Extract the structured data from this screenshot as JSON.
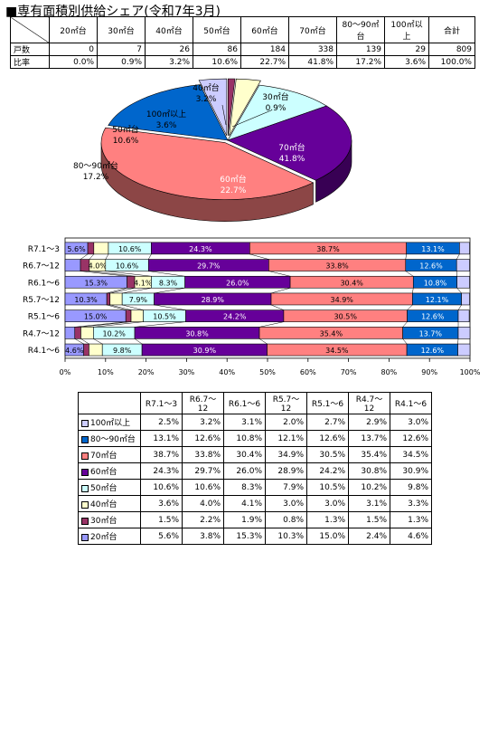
{
  "title": "■専有面積別供給シェア(令和7年3月)",
  "units_table": {
    "columns": [
      "20㎡台",
      "30㎡台",
      "40㎡台",
      "50㎡台",
      "60㎡台",
      "70㎡台",
      "80～90㎡台",
      "100㎡以上",
      "合計"
    ],
    "rows": [
      {
        "label": "戸数",
        "values": [
          "0",
          "7",
          "26",
          "86",
          "184",
          "338",
          "139",
          "29",
          "809"
        ]
      },
      {
        "label": "比率",
        "values": [
          "0.0%",
          "0.9%",
          "3.2%",
          "10.6%",
          "22.7%",
          "41.8%",
          "17.2%",
          "3.6%",
          "100.0%"
        ]
      }
    ]
  },
  "colors": {
    "20㎡台": "#9999ff",
    "30㎡台": "#993366",
    "40㎡台": "#ffffcc",
    "50㎡台": "#ccffff",
    "60㎡台": "#660099",
    "70㎡台": "#ff8080",
    "80～90㎡台": "#0066cc",
    "100㎡以上": "#ccccff"
  },
  "chart_data": [
    {
      "type": "pie",
      "labels": [
        "30㎡台",
        "40㎡台",
        "50㎡台",
        "60㎡台",
        "70㎡台",
        "80～90㎡台",
        "100㎡以上"
      ],
      "values": [
        0.9,
        3.2,
        10.6,
        22.7,
        41.8,
        17.2,
        3.6
      ],
      "data_labels": [
        "0.9%",
        "3.2%",
        "10.6%",
        "22.7%",
        "41.8%",
        "17.2%",
        "3.6%"
      ]
    },
    {
      "type": "bar",
      "orientation": "horizontal",
      "stacked": "percent",
      "categories": [
        "R7.1～3",
        "R6.7～12",
        "R6.1～6",
        "R5.7～12",
        "R5.1～6",
        "R4.7～12",
        "R4.1～6"
      ],
      "series": [
        {
          "name": "20㎡台",
          "values": [
            5.6,
            3.8,
            15.3,
            10.3,
            15.0,
            2.4,
            4.6
          ]
        },
        {
          "name": "30㎡台",
          "values": [
            1.5,
            2.2,
            1.9,
            0.8,
            1.3,
            1.5,
            1.3
          ]
        },
        {
          "name": "40㎡台",
          "values": [
            3.6,
            4.0,
            4.1,
            3.0,
            3.0,
            3.1,
            3.3
          ]
        },
        {
          "name": "50㎡台",
          "values": [
            10.6,
            10.6,
            8.3,
            7.9,
            10.5,
            10.2,
            9.8
          ]
        },
        {
          "name": "60㎡台",
          "values": [
            24.3,
            29.7,
            26.0,
            28.9,
            24.2,
            30.8,
            30.9
          ]
        },
        {
          "name": "70㎡台",
          "values": [
            38.7,
            33.8,
            30.4,
            34.9,
            30.5,
            35.4,
            34.5
          ]
        },
        {
          "name": "80～90㎡台",
          "values": [
            13.1,
            12.6,
            10.8,
            12.1,
            12.6,
            13.7,
            12.6
          ]
        },
        {
          "name": "100㎡以上",
          "values": [
            2.5,
            3.2,
            3.1,
            2.0,
            2.7,
            2.9,
            3.0
          ]
        }
      ],
      "bar_labels": [
        [
          "5.6%",
          "",
          "",
          "10.6%",
          "24.3%",
          "38.7%",
          "13.1%",
          ""
        ],
        [
          "",
          "",
          "4.0%",
          "10.6%",
          "29.7%",
          "33.8%",
          "12.6%",
          ""
        ],
        [
          "15.3%",
          "",
          "4.1%",
          "8.3%",
          "26.0%",
          "30.4%",
          "10.8%",
          ""
        ],
        [
          "10.3%",
          "",
          "",
          "7.9%",
          "28.9%",
          "34.9%",
          "12.1%",
          ""
        ],
        [
          "15.0%",
          "",
          "",
          "10.5%",
          "24.2%",
          "30.5%",
          "12.6%",
          ""
        ],
        [
          "",
          "",
          "",
          "10.2%",
          "30.8%",
          "35.4%",
          "13.7%",
          ""
        ],
        [
          "4.6%",
          "",
          "",
          "9.8%",
          "30.9%",
          "34.5%",
          "12.6%",
          ""
        ]
      ],
      "x_ticks": [
        "0%",
        "10%",
        "20%",
        "30%",
        "40%",
        "50%",
        "60%",
        "70%",
        "80%",
        "90%",
        "100%"
      ],
      "xlim": [
        0,
        100
      ]
    }
  ],
  "pct_table": {
    "columns": [
      "R7.1～3",
      "R6.7～12",
      "R6.1～6",
      "R5.7～12",
      "R5.1～6",
      "R4.7～12",
      "R4.1～6"
    ],
    "rows": [
      {
        "label": "100㎡以上",
        "values": [
          "2.5%",
          "3.2%",
          "3.1%",
          "2.0%",
          "2.7%",
          "2.9%",
          "3.0%"
        ]
      },
      {
        "label": "80～90㎡台",
        "values": [
          "13.1%",
          "12.6%",
          "10.8%",
          "12.1%",
          "12.6%",
          "13.7%",
          "12.6%"
        ]
      },
      {
        "label": "70㎡台",
        "values": [
          "38.7%",
          "33.8%",
          "30.4%",
          "34.9%",
          "30.5%",
          "35.4%",
          "34.5%"
        ]
      },
      {
        "label": "60㎡台",
        "values": [
          "24.3%",
          "29.7%",
          "26.0%",
          "28.9%",
          "24.2%",
          "30.8%",
          "30.9%"
        ]
      },
      {
        "label": "50㎡台",
        "values": [
          "10.6%",
          "10.6%",
          "8.3%",
          "7.9%",
          "10.5%",
          "10.2%",
          "9.8%"
        ]
      },
      {
        "label": "40㎡台",
        "values": [
          "3.6%",
          "4.0%",
          "4.1%",
          "3.0%",
          "3.0%",
          "3.1%",
          "3.3%"
        ]
      },
      {
        "label": "30㎡台",
        "values": [
          "1.5%",
          "2.2%",
          "1.9%",
          "0.8%",
          "1.3%",
          "1.5%",
          "1.3%"
        ]
      },
      {
        "label": "20㎡台",
        "values": [
          "5.6%",
          "3.8%",
          "15.3%",
          "10.3%",
          "15.0%",
          "2.4%",
          "4.6%"
        ]
      }
    ]
  }
}
